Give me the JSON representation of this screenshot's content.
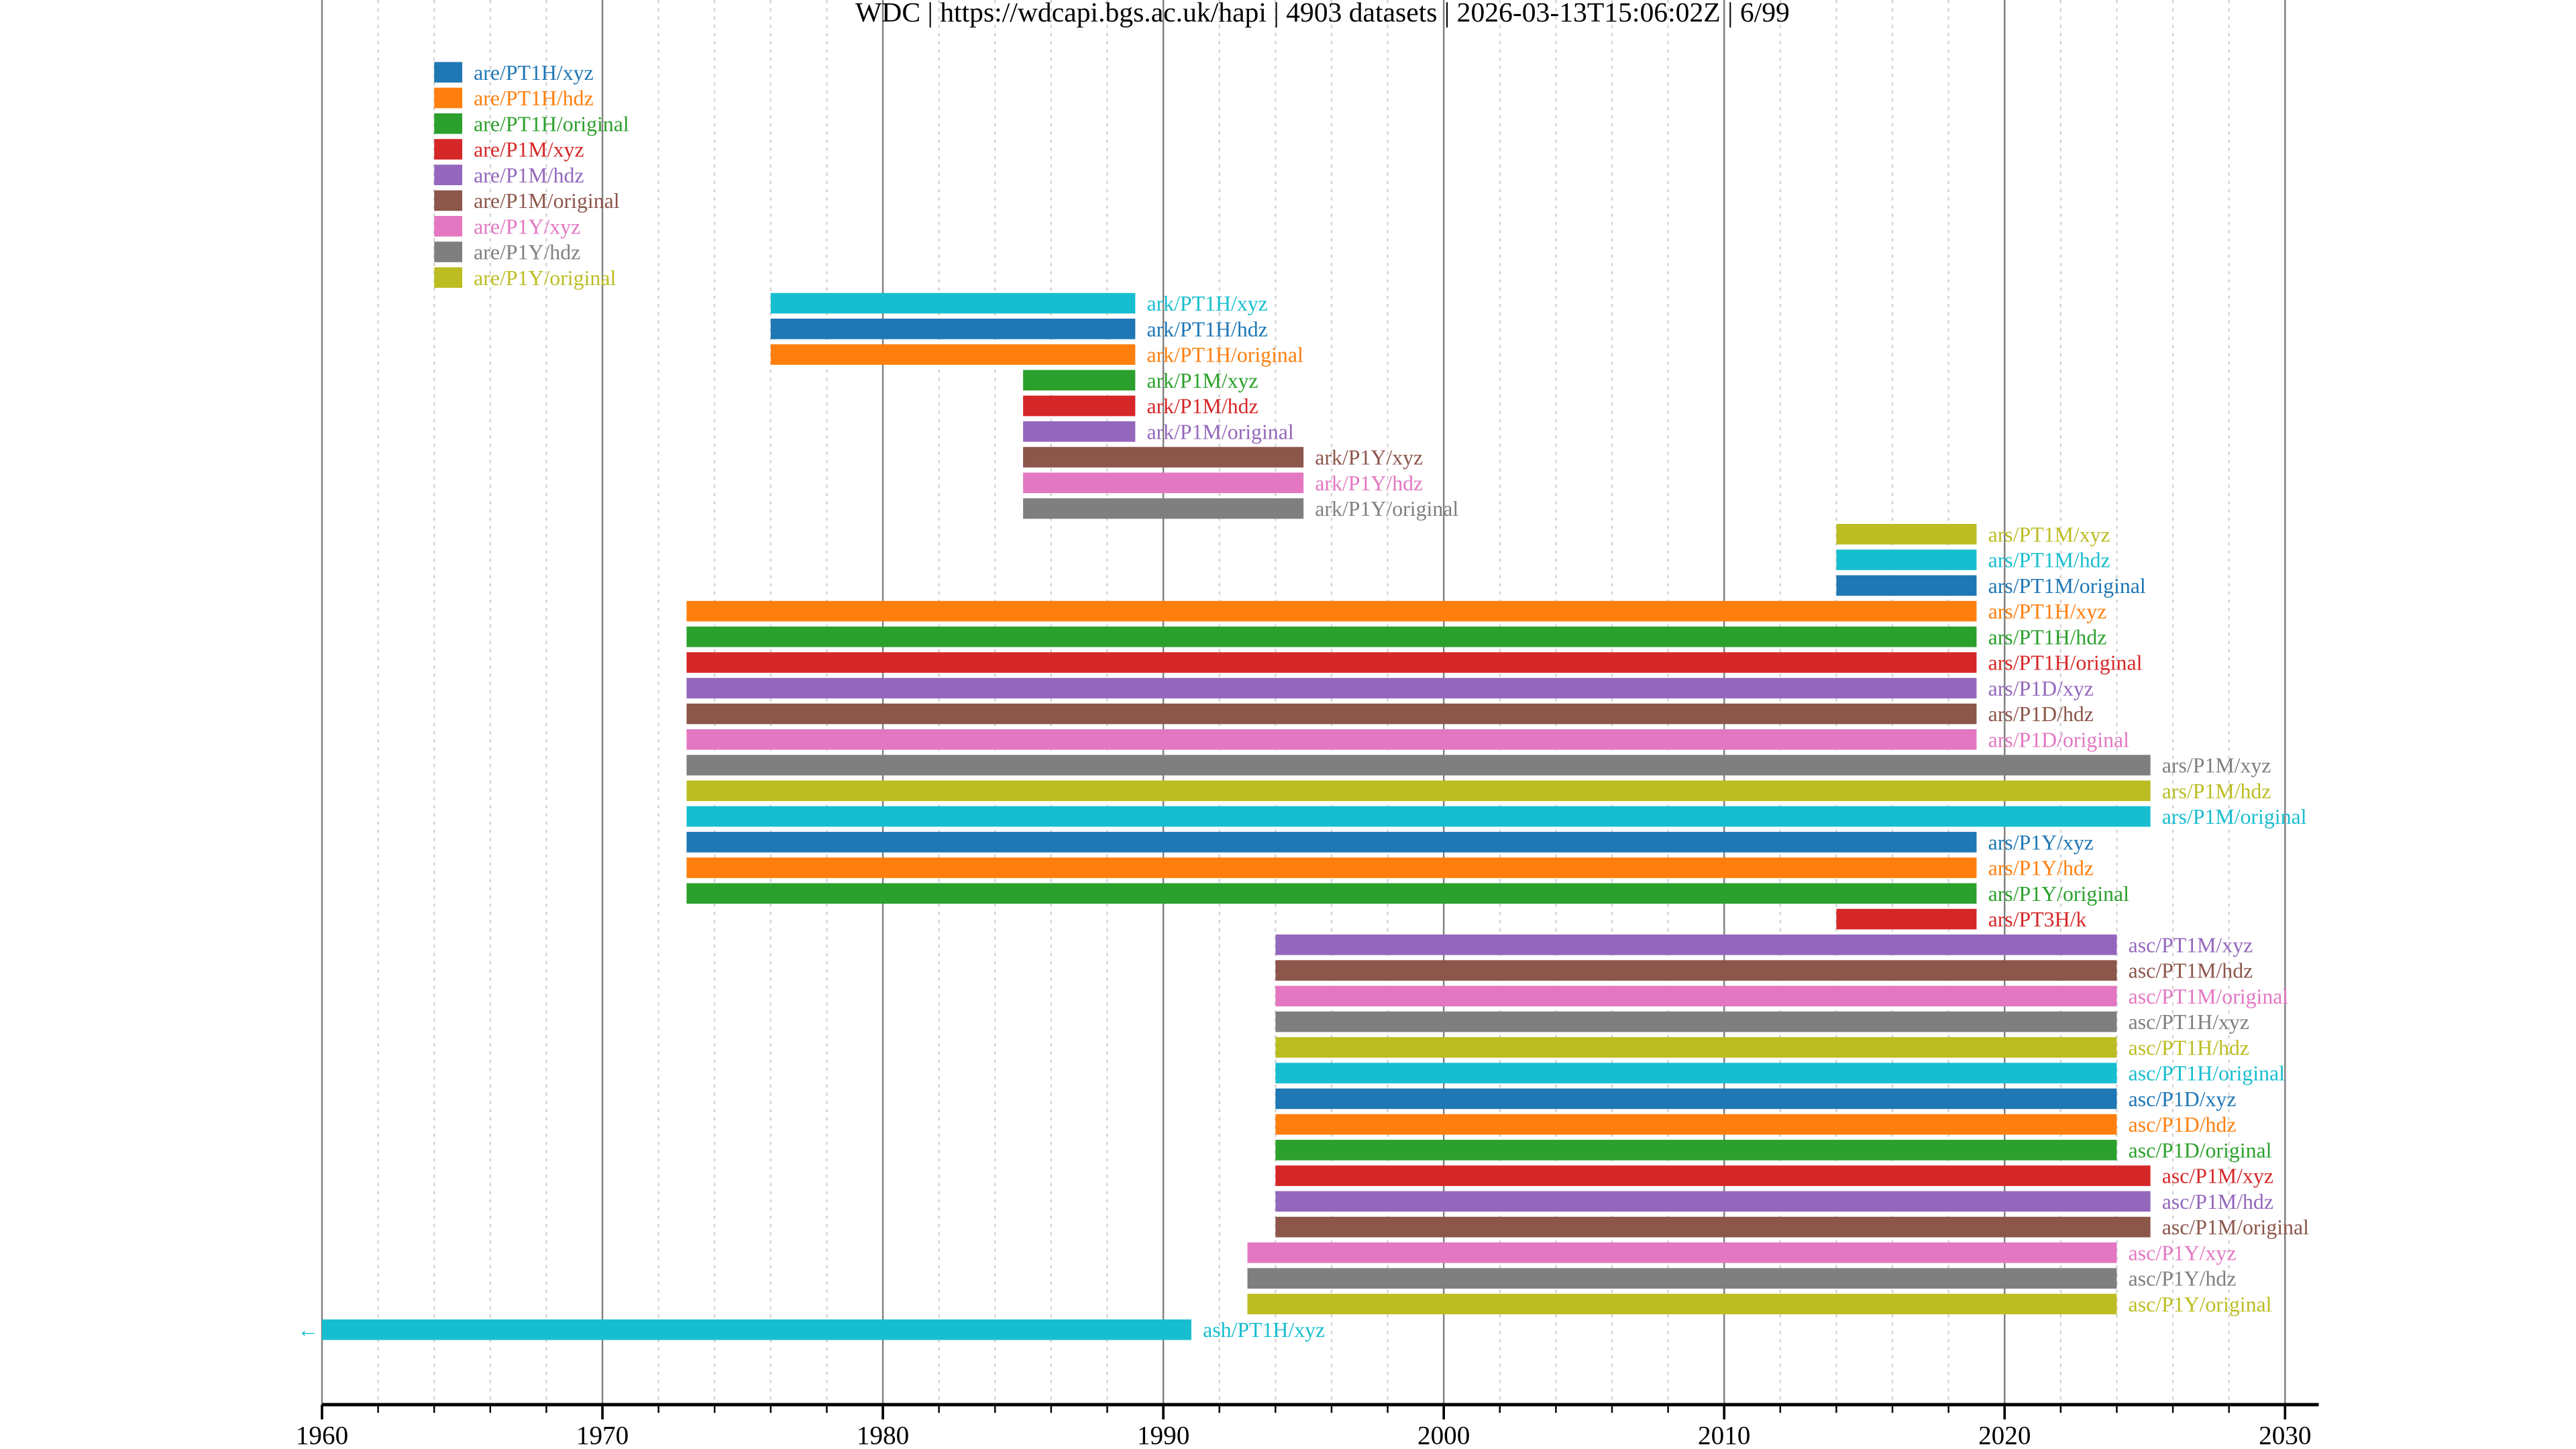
{
  "chart_data": {
    "type": "timeline",
    "title": "WDC | https://wdcapi.bgs.ac.uk/hapi | 4903 datasets | 2026-03-13T15:06:02Z | 6/99",
    "xlabel": "",
    "ylabel": "",
    "xlim": [
      1960,
      2031.2
    ],
    "x_major_ticks": [
      1960,
      1970,
      1980,
      1990,
      2000,
      2010,
      2020,
      2030
    ],
    "x_tick_labels": [
      "1960",
      "1970",
      "1980",
      "1990",
      "2000",
      "2010",
      "2020",
      "2030"
    ],
    "x_minor_tick_step": 2,
    "grid": true,
    "palette": [
      "#1f77b4",
      "#ff7f0e",
      "#2ca02c",
      "#d62728",
      "#9467bd",
      "#8c564b",
      "#e377c2",
      "#7f7f7f",
      "#bcbd22",
      "#17becf"
    ],
    "truncated_marker": "←",
    "series": [
      {
        "name": "are/PT1H/xyz",
        "start": 1964,
        "end": 1965,
        "color": "#1f77b4"
      },
      {
        "name": "are/PT1H/hdz",
        "start": 1964,
        "end": 1965,
        "color": "#ff7f0e"
      },
      {
        "name": "are/PT1H/original",
        "start": 1964,
        "end": 1965,
        "color": "#2ca02c"
      },
      {
        "name": "are/P1M/xyz",
        "start": 1964,
        "end": 1965,
        "color": "#d62728"
      },
      {
        "name": "are/P1M/hdz",
        "start": 1964,
        "end": 1965,
        "color": "#9467bd"
      },
      {
        "name": "are/P1M/original",
        "start": 1964,
        "end": 1965,
        "color": "#8c564b"
      },
      {
        "name": "are/P1Y/xyz",
        "start": 1964,
        "end": 1965,
        "color": "#e377c2"
      },
      {
        "name": "are/P1Y/hdz",
        "start": 1964,
        "end": 1965,
        "color": "#7f7f7f"
      },
      {
        "name": "are/P1Y/original",
        "start": 1964,
        "end": 1965,
        "color": "#bcbd22"
      },
      {
        "name": "ark/PT1H/xyz",
        "start": 1976,
        "end": 1989,
        "color": "#17becf"
      },
      {
        "name": "ark/PT1H/hdz",
        "start": 1976,
        "end": 1989,
        "color": "#1f77b4"
      },
      {
        "name": "ark/PT1H/original",
        "start": 1976,
        "end": 1989,
        "color": "#ff7f0e"
      },
      {
        "name": "ark/P1M/xyz",
        "start": 1985,
        "end": 1989,
        "color": "#2ca02c"
      },
      {
        "name": "ark/P1M/hdz",
        "start": 1985,
        "end": 1989,
        "color": "#d62728"
      },
      {
        "name": "ark/P1M/original",
        "start": 1985,
        "end": 1989,
        "color": "#9467bd"
      },
      {
        "name": "ark/P1Y/xyz",
        "start": 1985,
        "end": 1995,
        "color": "#8c564b"
      },
      {
        "name": "ark/P1Y/hdz",
        "start": 1985,
        "end": 1995,
        "color": "#e377c2"
      },
      {
        "name": "ark/P1Y/original",
        "start": 1985,
        "end": 1995,
        "color": "#7f7f7f"
      },
      {
        "name": "ars/PT1M/xyz",
        "start": 2014,
        "end": 2019,
        "color": "#bcbd22"
      },
      {
        "name": "ars/PT1M/hdz",
        "start": 2014,
        "end": 2019,
        "color": "#17becf"
      },
      {
        "name": "ars/PT1M/original",
        "start": 2014,
        "end": 2019,
        "color": "#1f77b4"
      },
      {
        "name": "ars/PT1H/xyz",
        "start": 1973,
        "end": 2019,
        "color": "#ff7f0e"
      },
      {
        "name": "ars/PT1H/hdz",
        "start": 1973,
        "end": 2019,
        "color": "#2ca02c"
      },
      {
        "name": "ars/PT1H/original",
        "start": 1973,
        "end": 2019,
        "color": "#d62728"
      },
      {
        "name": "ars/P1D/xyz",
        "start": 1973,
        "end": 2019,
        "color": "#9467bd"
      },
      {
        "name": "ars/P1D/hdz",
        "start": 1973,
        "end": 2019,
        "color": "#8c564b"
      },
      {
        "name": "ars/P1D/original",
        "start": 1973,
        "end": 2019,
        "color": "#e377c2"
      },
      {
        "name": "ars/P1M/xyz",
        "start": 1973,
        "end": 2025.2,
        "color": "#7f7f7f"
      },
      {
        "name": "ars/P1M/hdz",
        "start": 1973,
        "end": 2025.2,
        "color": "#bcbd22"
      },
      {
        "name": "ars/P1M/original",
        "start": 1973,
        "end": 2025.2,
        "color": "#17becf"
      },
      {
        "name": "ars/P1Y/xyz",
        "start": 1973,
        "end": 2019,
        "color": "#1f77b4"
      },
      {
        "name": "ars/P1Y/hdz",
        "start": 1973,
        "end": 2019,
        "color": "#ff7f0e"
      },
      {
        "name": "ars/P1Y/original",
        "start": 1973,
        "end": 2019,
        "color": "#2ca02c"
      },
      {
        "name": "ars/PT3H/k",
        "start": 2014,
        "end": 2019,
        "color": "#d62728"
      },
      {
        "name": "asc/PT1M/xyz",
        "start": 1994,
        "end": 2024,
        "color": "#9467bd"
      },
      {
        "name": "asc/PT1M/hdz",
        "start": 1994,
        "end": 2024,
        "color": "#8c564b"
      },
      {
        "name": "asc/PT1M/original",
        "start": 1994,
        "end": 2024,
        "color": "#e377c2"
      },
      {
        "name": "asc/PT1H/xyz",
        "start": 1994,
        "end": 2024,
        "color": "#7f7f7f"
      },
      {
        "name": "asc/PT1H/hdz",
        "start": 1994,
        "end": 2024,
        "color": "#bcbd22"
      },
      {
        "name": "asc/PT1H/original",
        "start": 1994,
        "end": 2024,
        "color": "#17becf"
      },
      {
        "name": "asc/P1D/xyz",
        "start": 1994,
        "end": 2024,
        "color": "#1f77b4"
      },
      {
        "name": "asc/P1D/hdz",
        "start": 1994,
        "end": 2024,
        "color": "#ff7f0e"
      },
      {
        "name": "asc/P1D/original",
        "start": 1994,
        "end": 2024,
        "color": "#2ca02c"
      },
      {
        "name": "asc/P1M/xyz",
        "start": 1994,
        "end": 2025.2,
        "color": "#d62728"
      },
      {
        "name": "asc/P1M/hdz",
        "start": 1994,
        "end": 2025.2,
        "color": "#9467bd"
      },
      {
        "name": "asc/P1M/original",
        "start": 1994,
        "end": 2025.2,
        "color": "#8c564b"
      },
      {
        "name": "asc/P1Y/xyz",
        "start": 1993,
        "end": 2024,
        "color": "#e377c2"
      },
      {
        "name": "asc/P1Y/hdz",
        "start": 1993,
        "end": 2024,
        "color": "#7f7f7f"
      },
      {
        "name": "asc/P1Y/original",
        "start": 1993,
        "end": 2024,
        "color": "#bcbd22"
      },
      {
        "name": "ash/PT1H/xyz",
        "start": null,
        "end": 1991,
        "truncated_start": true,
        "color": "#17becf"
      }
    ]
  }
}
